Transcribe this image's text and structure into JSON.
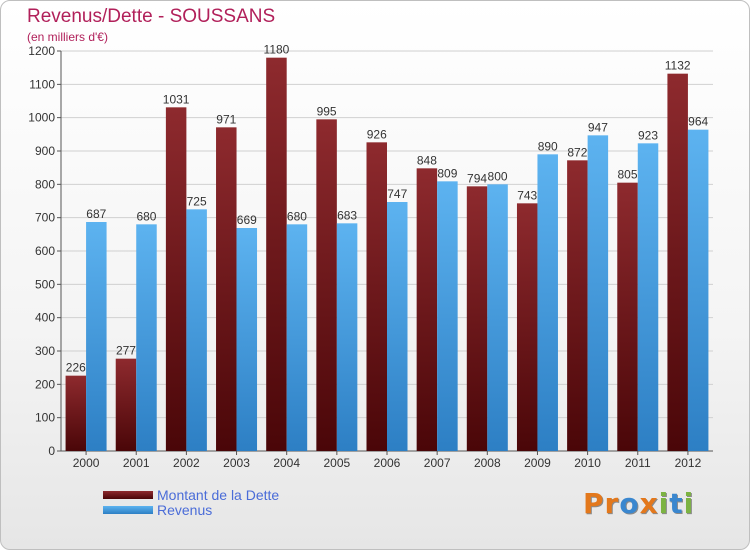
{
  "header": {
    "title": "Revenus/Dette - SOUSSANS",
    "subtitle": "(en milliers d'€)"
  },
  "legend": {
    "items": [
      {
        "label": "Montant de la Dette",
        "color": "#7a1416"
      },
      {
        "label": "Revenus",
        "color": "#4aa3e6"
      }
    ]
  },
  "logo": {
    "text": "Proxiti",
    "letters": [
      {
        "ch": "P",
        "color": "#e3781c"
      },
      {
        "ch": "r",
        "color": "#e3781c"
      },
      {
        "ch": "o",
        "color": "#3a87cf"
      },
      {
        "ch": "x",
        "color": "#e3781c"
      },
      {
        "ch": "i",
        "color": "#7cb342"
      },
      {
        "ch": "t",
        "color": "#3a87cf"
      },
      {
        "ch": "i",
        "color": "#7cb342"
      }
    ]
  },
  "chart_data": {
    "type": "bar",
    "title": "Revenus/Dette - SOUSSANS",
    "subtitle": "(en milliers d'€)",
    "categories": [
      "2000",
      "2001",
      "2002",
      "2003",
      "2004",
      "2005",
      "2006",
      "2007",
      "2008",
      "2009",
      "2010",
      "2011",
      "2012"
    ],
    "series": [
      {
        "name": "Montant de la Dette",
        "color": "#7a1416",
        "values": [
          226,
          277,
          1031,
          971,
          1180,
          995,
          926,
          848,
          794,
          743,
          872,
          805,
          1132
        ]
      },
      {
        "name": "Revenus",
        "color": "#4aa3e6",
        "values": [
          687,
          680,
          725,
          669,
          680,
          683,
          747,
          809,
          800,
          890,
          947,
          923,
          964
        ]
      }
    ],
    "ylim": [
      0,
      1200
    ],
    "yticks": [
      0,
      100,
      200,
      300,
      400,
      500,
      600,
      700,
      800,
      900,
      1000,
      1100,
      1200
    ],
    "grid": true,
    "legend_position": "bottom-left"
  }
}
